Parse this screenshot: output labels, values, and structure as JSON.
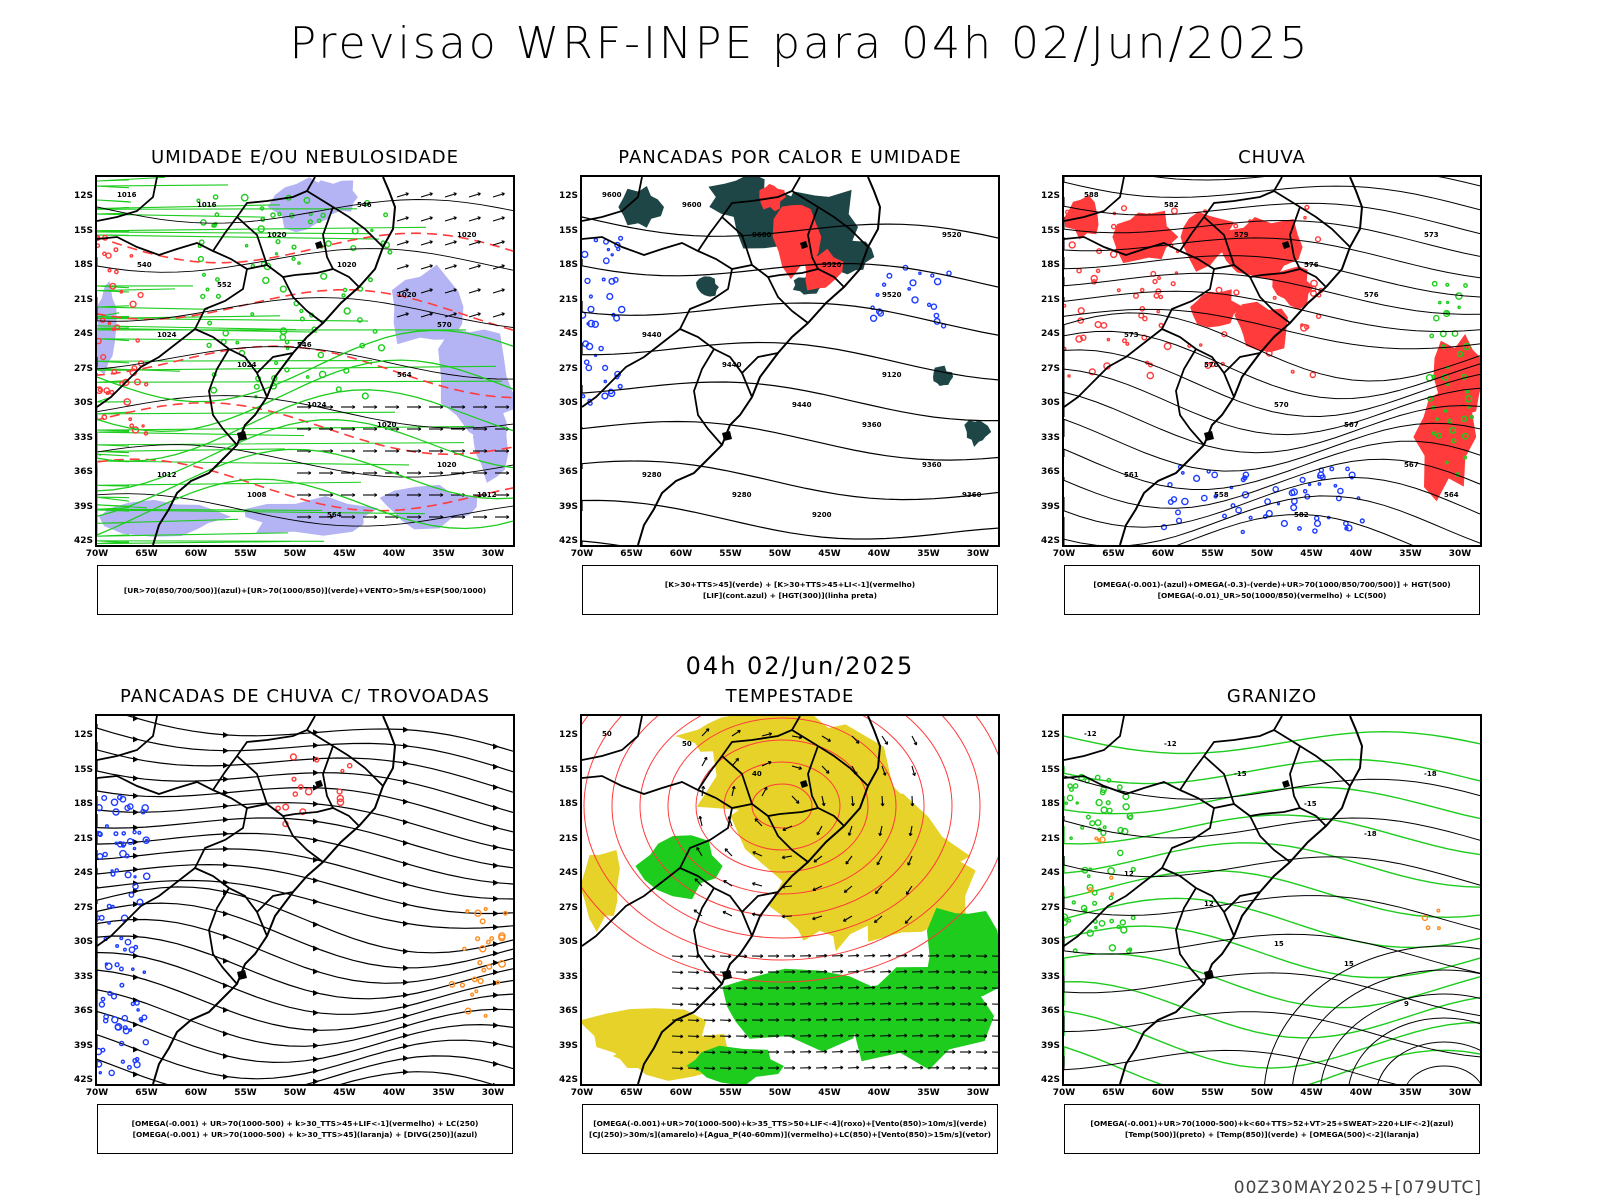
{
  "title": "Previsao WRF-INPE  para 04h 02/Jun/2025",
  "mid_label": "04h 02/Jun/2025",
  "footer": "00Z30MAY2025+[079UTC]",
  "lat_ticks": [
    "12S",
    "15S",
    "18S",
    "21S",
    "24S",
    "27S",
    "30S",
    "33S",
    "36S",
    "39S",
    "42S"
  ],
  "lon_ticks": [
    "70W",
    "65W",
    "60W",
    "55W",
    "50W",
    "45W",
    "40W",
    "35W",
    "30W"
  ],
  "colors": {
    "blue": "#1e3cff",
    "green": "#1ecc1e",
    "red": "#ff3b3b",
    "lavender": "#b4b4f4",
    "darkteal": "#1e4646",
    "yellow": "#e6d228",
    "orange": "#ff8c1e",
    "black": "#000000"
  },
  "panels": [
    {
      "title": "UMIDADE E/OU NEBULOSIDADE",
      "legend": [
        "[UR>70(850/700/500)](azul)+[UR>70(1000/850)](verde)+VENTO>5m/s+ESP(500/1000)"
      ],
      "contour_labels": [
        "1016",
        "1016",
        "1020",
        "1020",
        "1020",
        "1020",
        "1024",
        "1024",
        "1024",
        "1020",
        "1020",
        "1012",
        "1012",
        "1008",
        "564",
        "564",
        "570",
        "552",
        "546",
        "540",
        "546"
      ]
    },
    {
      "title": "PANCADAS POR CALOR E UMIDADE",
      "legend": [
        "[K>30+TTS>45](verde) + [K>30+TTS>45+LI<-1](vermelho)",
        "[LIF](cont.azul) + [HGT(300)](linha preta)"
      ],
      "contour_labels": [
        "9600",
        "9600",
        "9600",
        "9520",
        "9520",
        "9520",
        "9440",
        "9440",
        "9440",
        "9360",
        "9360",
        "9360",
        "9280",
        "9280",
        "9200",
        "9120"
      ]
    },
    {
      "title": "CHUVA",
      "legend": [
        "[OMEGA(-0.001)-(azul)+OMEGA(-0.3)-(verde)+UR>70(1000/850/700/500)] + HGT(500)",
        "[OMEGA(-0.01)_UR>50(1000/850)(vermelho) + LC(500)"
      ],
      "contour_labels": [
        "588",
        "582",
        "579",
        "576",
        "576",
        "573",
        "573",
        "570",
        "570",
        "567",
        "567",
        "564",
        "561",
        "558",
        "582"
      ]
    },
    {
      "title": "PANCADAS DE CHUVA C/ TROVOADAS",
      "legend": [
        "[OMEGA(-0.001) + UR>70(1000-500) + k>30_TTS>45+LIF<-1](vermelho) + LC(250)",
        "[OMEGA(-0.001) + UR>70(1000-500) + k>30_TTS>45](laranja) + [DIVG(250)](azul)"
      ],
      "contour_labels": []
    },
    {
      "title": "TEMPESTADE",
      "legend": [
        "[OMEGA(-0.001)+UR>70(1000-500)+k>35_TTS>50+LIF<-4](roxo)+[Vento(850)>10m/s](verde)",
        "[CJ(250)>30m/s](amarelo)+[Agua_P(40-60mm)](vermelho)+LC(850)+[Vento(850)>15m/s](vetor)"
      ],
      "contour_labels": [
        "50",
        "50",
        "40"
      ]
    },
    {
      "title": "GRANIZO",
      "legend": [
        "[OMEGA(-0.001)+UR>70(1000-500)+k<60+TTS>52+VT>25+SWEAT>220+LIF<-2](azul)",
        "[Temp(500)](preto) + [Temp(850)](verde) + [OMEGA(500)<-2](laranja)"
      ],
      "contour_labels": [
        "-12",
        "-12",
        "-15",
        "-15",
        "-18",
        "-18",
        "12",
        "12",
        "15",
        "15",
        "9"
      ]
    }
  ]
}
